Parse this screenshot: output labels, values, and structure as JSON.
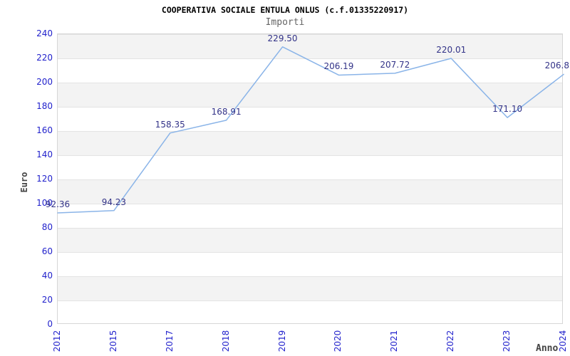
{
  "chart_data": {
    "type": "line",
    "title": "COOPERATIVA SOCIALE ENTULA ONLUS (c.f.01335220917)",
    "subtitle": "Importi",
    "xlabel": "Anno",
    "ylabel": "Euro",
    "categories": [
      "2012",
      "2015",
      "2017",
      "2018",
      "2019",
      "2020",
      "2021",
      "2022",
      "2023",
      "2024"
    ],
    "values": [
      92.36,
      94.23,
      158.35,
      168.91,
      229.5,
      206.19,
      207.72,
      220.01,
      171.1,
      206.8
    ],
    "point_labels": [
      "92.36",
      "94.23",
      "158.35",
      "168.91",
      "229.50",
      "206.19",
      "207.72",
      "220.01",
      "171.10",
      "206.8"
    ],
    "last_label_clipped_at_right_edge": true,
    "ylim": [
      0,
      240
    ],
    "y_ticks": [
      0,
      20,
      40,
      60,
      80,
      100,
      120,
      140,
      160,
      180,
      200,
      220,
      240
    ],
    "grid": "horizontal gridlines with alternating background bands",
    "legend": "none",
    "colors": {
      "line": "#8ab4e8",
      "tick_labels": "#2222cc",
      "point_labels": "#333388",
      "band": "#f3f3f3",
      "gridline": "#e3e3e3",
      "axis_border": "#d6d6d6",
      "title": "#000000",
      "subtitle": "#666666",
      "axis_titles": "#444444"
    }
  }
}
